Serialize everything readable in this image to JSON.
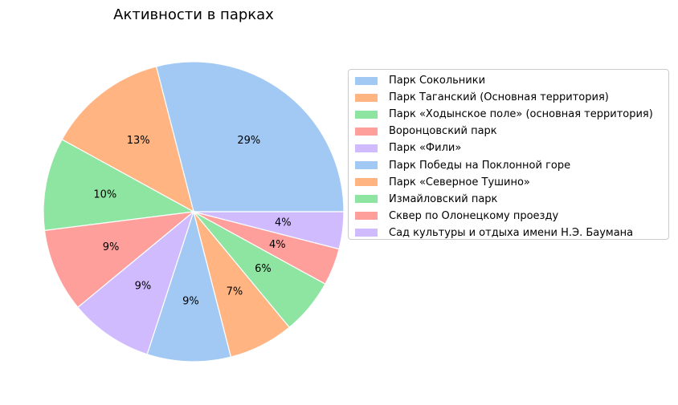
{
  "chart_data": {
    "type": "pie",
    "title": "Активности в парках",
    "slices": [
      {
        "label": "Парк Сокольники",
        "value": 29,
        "color": "#a1c9f4"
      },
      {
        "label": "Парк Таганский (Основная территория)",
        "value": 13,
        "color": "#ffb482"
      },
      {
        "label": "Парк «Ходынское поле» (основная территория)",
        "value": 10,
        "color": "#8de5a1"
      },
      {
        "label": "Воронцовский парк",
        "value": 9,
        "color": "#ff9f9b"
      },
      {
        "label": "Парк «Фили»",
        "value": 9,
        "color": "#d0bbff"
      },
      {
        "label": "Парк Победы на Поклонной горе",
        "value": 9,
        "color": "#a1c9f4"
      },
      {
        "label": "Парк «Северное Тушино»",
        "value": 7,
        "color": "#ffb482"
      },
      {
        "label": "Измайловский парк",
        "value": 6,
        "color": "#8de5a1"
      },
      {
        "label": "Сквер по Олонецкому проезду",
        "value": 4,
        "color": "#ff9f9b"
      },
      {
        "label": "Сад культуры и отдыха имени Н.Э. Баумана",
        "value": 4,
        "color": "#d0bbff"
      }
    ],
    "pct_labels": [
      "29%",
      "13%",
      "10%",
      "9%",
      "9%",
      "9%",
      "7%",
      "6%",
      "4%",
      "4%"
    ],
    "legend_position": "right"
  }
}
